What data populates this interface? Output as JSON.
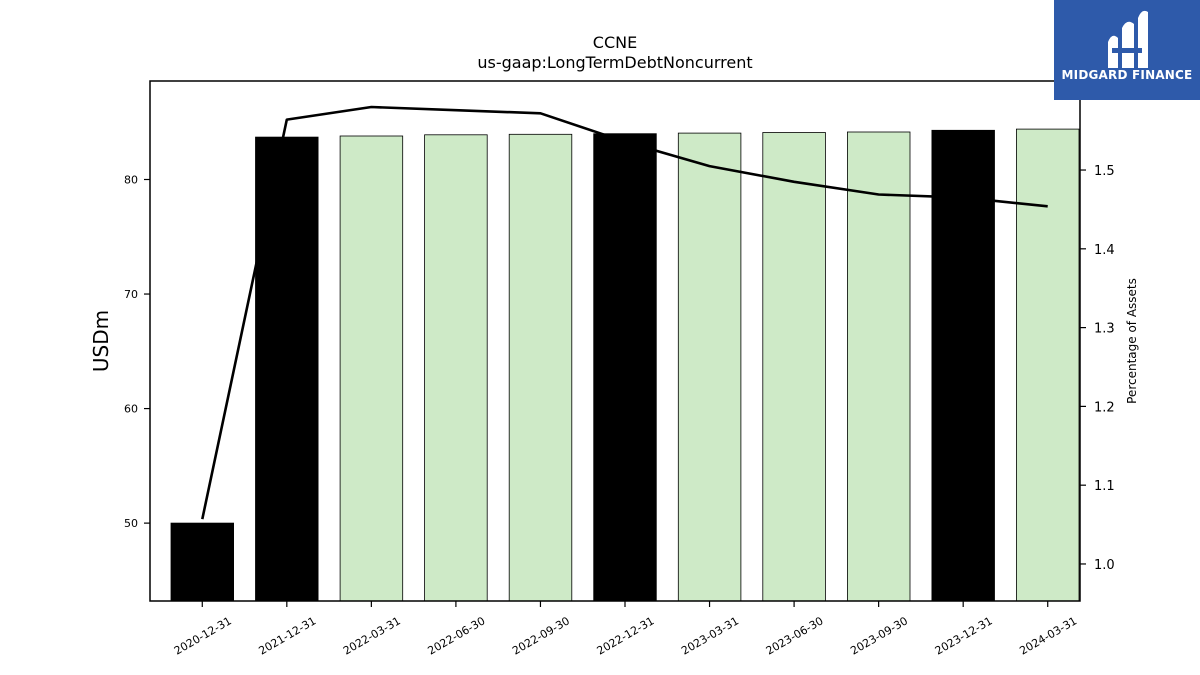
{
  "chart_data": {
    "type": "bar",
    "title": "CCNE",
    "subtitle": "us-gaap:LongTermDebtNoncurrent",
    "ylabel": "USDm",
    "y2label": "Percentage of Assets",
    "categories": [
      "2020-12-31",
      "2021-12-31",
      "2022-03-31",
      "2022-06-30",
      "2022-09-30",
      "2022-12-31",
      "2023-03-31",
      "2023-06-30",
      "2023-09-30",
      "2023-12-31",
      "2024-03-31"
    ],
    "values": [
      50.0,
      83.7,
      83.8,
      83.9,
      83.95,
      84.0,
      84.05,
      84.1,
      84.15,
      84.3,
      84.4
    ],
    "bar_kind": [
      "annual",
      "annual",
      "quarter",
      "quarter",
      "quarter",
      "annual",
      "quarter",
      "quarter",
      "quarter",
      "annual",
      "quarter"
    ],
    "line_values": [
      1.057,
      1.564,
      1.58,
      1.576,
      1.572,
      1.536,
      1.505,
      1.485,
      1.469,
      1.465,
      1.454
    ],
    "ylim": [
      43.2,
      88.6
    ],
    "y2lim": [
      0.953,
      1.613
    ],
    "yticks": [
      50,
      60,
      70,
      80
    ],
    "y2ticks": [
      1.0,
      1.1,
      1.2,
      1.3,
      1.4,
      1.5
    ],
    "colors": {
      "annual": "#000000",
      "quarter": "#ceeac7",
      "line": "#000000"
    }
  },
  "logo": {
    "text": "MIDGARD FINANCE",
    "icon": "midgard-m-logo-icon",
    "color": "#2e5aaa"
  }
}
